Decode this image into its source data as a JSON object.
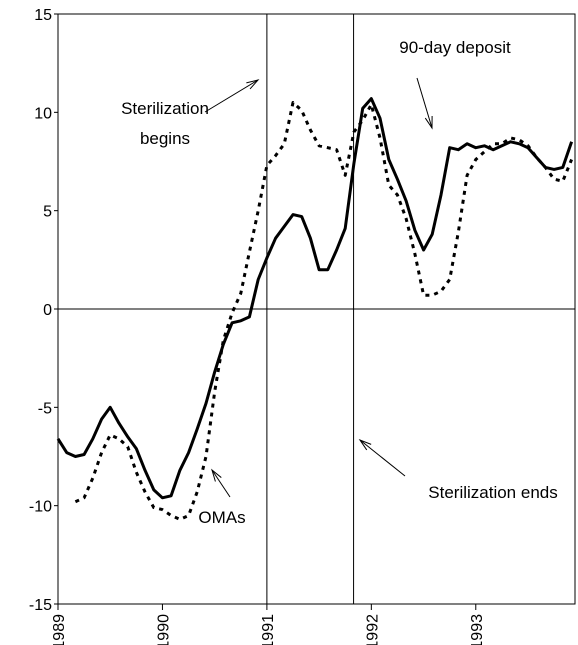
{
  "chart_data": {
    "type": "line",
    "x": [
      1989,
      1989.083,
      1989.167,
      1989.25,
      1989.333,
      1989.417,
      1989.5,
      1989.583,
      1989.667,
      1989.75,
      1989.833,
      1989.917,
      1990,
      1990.083,
      1990.167,
      1990.25,
      1990.333,
      1990.417,
      1990.5,
      1990.583,
      1990.667,
      1990.75,
      1990.833,
      1990.917,
      1991,
      1991.083,
      1991.167,
      1991.25,
      1991.333,
      1991.417,
      1991.5,
      1991.583,
      1991.667,
      1991.75,
      1991.833,
      1991.917,
      1992,
      1992.083,
      1992.167,
      1992.25,
      1992.333,
      1992.417,
      1992.5,
      1992.583,
      1992.667,
      1992.75,
      1992.833,
      1992.917,
      1993,
      1993.083,
      1993.167,
      1993.25,
      1993.333,
      1993.417,
      1993.5,
      1993.583,
      1993.667,
      1993.75,
      1993.833,
      1993.917
    ],
    "series": [
      {
        "color": "#000000",
        "style": "solid",
        "values": [
          -6.6,
          -7.3,
          -7.5,
          -7.4,
          -6.6,
          -5.6,
          -5.0,
          -5.8,
          -6.5,
          -7.1,
          -8.2,
          -9.2,
          -9.6,
          -9.5,
          -8.2,
          -7.3,
          -6.1,
          -4.8,
          -3.2,
          -1.8,
          -0.7,
          -0.6,
          -0.4,
          1.5,
          2.6,
          3.6,
          4.2,
          4.8,
          4.7,
          3.6,
          2.0,
          2.0,
          3.0,
          4.1,
          7.4,
          10.2,
          10.7,
          9.7,
          7.6,
          6.6,
          5.5,
          4.0,
          3.0,
          3.8,
          5.8,
          8.2,
          8.1,
          8.4,
          8.2,
          8.3,
          8.1,
          8.3,
          8.5,
          8.4,
          8.2,
          7.7,
          7.2,
          7.1,
          7.2,
          8.5
        ]
      },
      {
        "color": "#000000",
        "style": "dashed",
        "values": [
          null,
          null,
          -9.8,
          -9.6,
          -8.6,
          -7.3,
          -6.4,
          -6.6,
          -7.0,
          -8.3,
          -9.3,
          -10.1,
          -10.2,
          -10.5,
          -10.7,
          -10.5,
          -9.3,
          -7.5,
          -4.2,
          -1.6,
          -0.2,
          0.8,
          2.9,
          5.0,
          7.3,
          7.8,
          8.4,
          10.5,
          10.1,
          9.1,
          8.3,
          8.2,
          8.1,
          6.8,
          9.0,
          9.6,
          10.4,
          8.7,
          6.3,
          5.8,
          4.6,
          2.8,
          0.7,
          0.7,
          0.9,
          1.5,
          3.9,
          6.8,
          7.6,
          8.0,
          8.4,
          8.4,
          8.7,
          8.6,
          8.3,
          7.7,
          7.2,
          6.6,
          6.5,
          7.6
        ]
      }
    ],
    "xlim": [
      1989,
      1993.95
    ],
    "xticks": [
      1989,
      1990,
      1991,
      1992,
      1993
    ],
    "ylim": [
      -15,
      15
    ],
    "yticks": [
      -15,
      -10,
      -5,
      0,
      5,
      10,
      15
    ],
    "vlines": [
      1991,
      1991.83
    ],
    "hlines": [
      0
    ],
    "annotations": [
      "90-day deposit",
      "Sterilization",
      "begins",
      "OMAs",
      "Sterilization ends"
    ]
  }
}
